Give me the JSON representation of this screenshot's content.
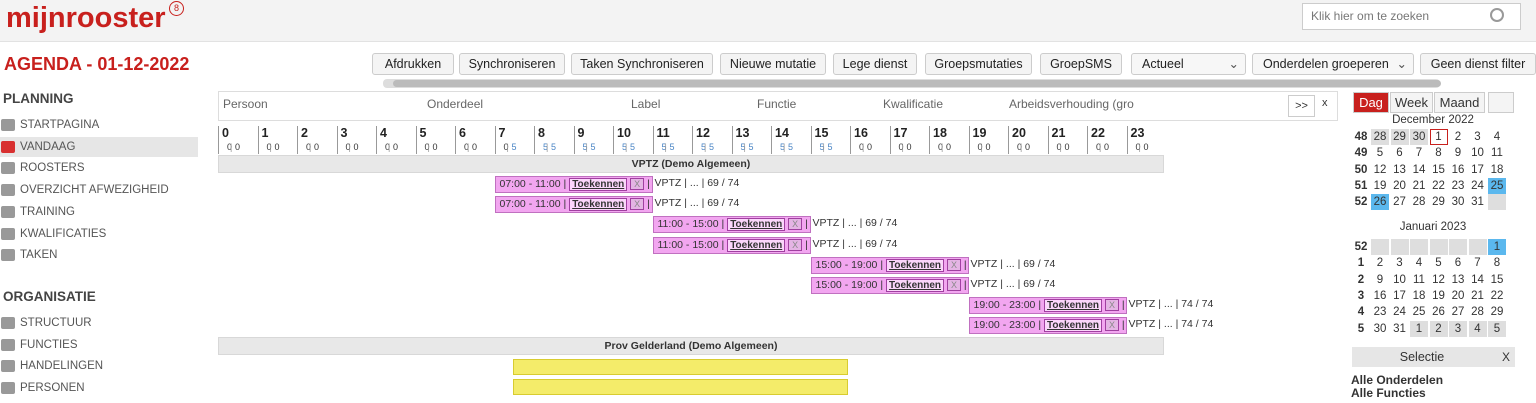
{
  "header": {
    "logo": "mijnrooster",
    "logo_badge": "8",
    "search_placeholder": "Klik hier om te zoeken"
  },
  "page_title": "AGENDA - 01-12-2022",
  "toolbar": {
    "buttons": [
      "Afdrukken",
      "Synchroniseren",
      "Taken Synchroniseren",
      "Nieuwe mutatie",
      "Lege dienst",
      "Groepsmutaties",
      "GroepSMS"
    ],
    "selects": [
      "Actueel",
      "Onderdelen groeperen"
    ],
    "filter_button": "Geen dienst filter"
  },
  "sidebar": {
    "sections": [
      {
        "title": "PLANNING",
        "items": [
          "STARTPAGINA",
          "VANDAAG",
          "ROOSTERS",
          "OVERZICHT AFWEZIGHEID",
          "TRAINING",
          "KWALIFICATIES",
          "TAKEN"
        ]
      },
      {
        "title": "ORGANISATIE",
        "items": [
          "STRUCTUUR",
          "FUNCTIES",
          "HANDELINGEN",
          "PERSONEN"
        ]
      }
    ]
  },
  "timeline": {
    "columns": [
      "Persoon",
      "Onderdeel",
      "Label",
      "Functie",
      "Kwalificatie",
      "Arbeidsverhouding (gro"
    ],
    "expand": ">>",
    "close": "x",
    "separator": "|",
    "hours": [
      {
        "hour": 0,
        "counts": [
          0,
          0
        ]
      },
      {
        "hour": 1,
        "counts": [
          0,
          0
        ]
      },
      {
        "hour": 2,
        "counts": [
          0,
          0
        ]
      },
      {
        "hour": 3,
        "counts": [
          0,
          0
        ]
      },
      {
        "hour": 4,
        "counts": [
          0,
          0
        ]
      },
      {
        "hour": 5,
        "counts": [
          0,
          0
        ]
      },
      {
        "hour": 6,
        "counts": [
          0,
          0
        ]
      },
      {
        "hour": 7,
        "counts": [
          0,
          5
        ]
      },
      {
        "hour": 8,
        "counts": [
          5,
          5
        ]
      },
      {
        "hour": 9,
        "counts": [
          5,
          5
        ]
      },
      {
        "hour": 10,
        "counts": [
          5,
          5
        ]
      },
      {
        "hour": 11,
        "counts": [
          5,
          5
        ]
      },
      {
        "hour": 12,
        "counts": [
          5,
          5
        ]
      },
      {
        "hour": 13,
        "counts": [
          5,
          5
        ]
      },
      {
        "hour": 14,
        "counts": [
          5,
          5
        ]
      },
      {
        "hour": 15,
        "counts": [
          5,
          5
        ]
      },
      {
        "hour": 16,
        "counts": [
          0,
          0
        ]
      },
      {
        "hour": 17,
        "counts": [
          0,
          0
        ]
      },
      {
        "hour": 18,
        "counts": [
          0,
          0
        ]
      },
      {
        "hour": 19,
        "counts": [
          0,
          0
        ]
      },
      {
        "hour": 20,
        "counts": [
          0,
          0
        ]
      },
      {
        "hour": 21,
        "counts": [
          0,
          0
        ]
      },
      {
        "hour": 22,
        "counts": [
          0,
          0
        ]
      },
      {
        "hour": 23,
        "counts": [
          0,
          0
        ]
      }
    ],
    "groups": [
      {
        "title": "VPTZ (Demo Algemeen)",
        "shifts": [
          {
            "time": "07:00 - 11:00",
            "action": "Toekennen",
            "remove": "X",
            "info": "VPTZ | ... | 69 / 74"
          },
          {
            "time": "07:00 - 11:00",
            "action": "Toekennen",
            "remove": "X",
            "info": "VPTZ | ... | 69 / 74"
          },
          {
            "time": "11:00 - 15:00",
            "action": "Toekennen",
            "remove": "X",
            "info": "VPTZ | ... | 69 / 74"
          },
          {
            "time": "11:00 - 15:00",
            "action": "Toekennen",
            "remove": "X",
            "info": "VPTZ | ... | 69 / 74"
          },
          {
            "time": "15:00 - 19:00",
            "action": "Toekennen",
            "remove": "X",
            "info": "VPTZ | ... | 69 / 74"
          },
          {
            "time": "15:00 - 19:00",
            "action": "Toekennen",
            "remove": "X",
            "info": "VPTZ | ... | 69 / 74"
          },
          {
            "time": "19:00 - 23:00",
            "action": "Toekennen",
            "remove": "X",
            "info": "VPTZ | ... | 74 / 74"
          },
          {
            "time": "19:00 - 23:00",
            "action": "Toekennen",
            "remove": "X",
            "info": "VPTZ | ... | 74 / 74"
          }
        ]
      },
      {
        "title": "Prov Gelderland (Demo Algemeen)",
        "shifts": []
      }
    ]
  },
  "calendar": {
    "tabs": [
      "Dag",
      "Week",
      "Maand"
    ],
    "months": [
      {
        "title": "December 2022",
        "weeks": [
          {
            "week": 48,
            "days": [
              28,
              29,
              30,
              1,
              2,
              3,
              4
            ]
          },
          {
            "week": 49,
            "days": [
              5,
              6,
              7,
              8,
              9,
              10,
              11
            ]
          },
          {
            "week": 50,
            "days": [
              12,
              13,
              14,
              15,
              16,
              17,
              18
            ]
          },
          {
            "week": 51,
            "days": [
              19,
              20,
              21,
              22,
              23,
              24,
              25
            ]
          },
          {
            "week": 52,
            "days": [
              26,
              27,
              28,
              29,
              30,
              31,
              null
            ]
          }
        ]
      },
      {
        "title": "Januari 2023",
        "weeks": [
          {
            "week": 52,
            "days": [
              null,
              null,
              null,
              null,
              null,
              null,
              1
            ]
          },
          {
            "week": 1,
            "days": [
              2,
              3,
              4,
              5,
              6,
              7,
              8
            ]
          },
          {
            "week": 2,
            "days": [
              9,
              10,
              11,
              12,
              13,
              14,
              15
            ]
          },
          {
            "week": 3,
            "days": [
              16,
              17,
              18,
              19,
              20,
              21,
              22
            ]
          },
          {
            "week": 4,
            "days": [
              23,
              24,
              25,
              26,
              27,
              28,
              29
            ]
          },
          {
            "week": 5,
            "days": [
              30,
              31,
              1,
              2,
              3,
              4,
              5
            ]
          }
        ]
      }
    ]
  },
  "selection": {
    "title": "Selectie",
    "close": "X",
    "items": [
      "Alle Onderdelen",
      "Alle Functies"
    ]
  }
}
